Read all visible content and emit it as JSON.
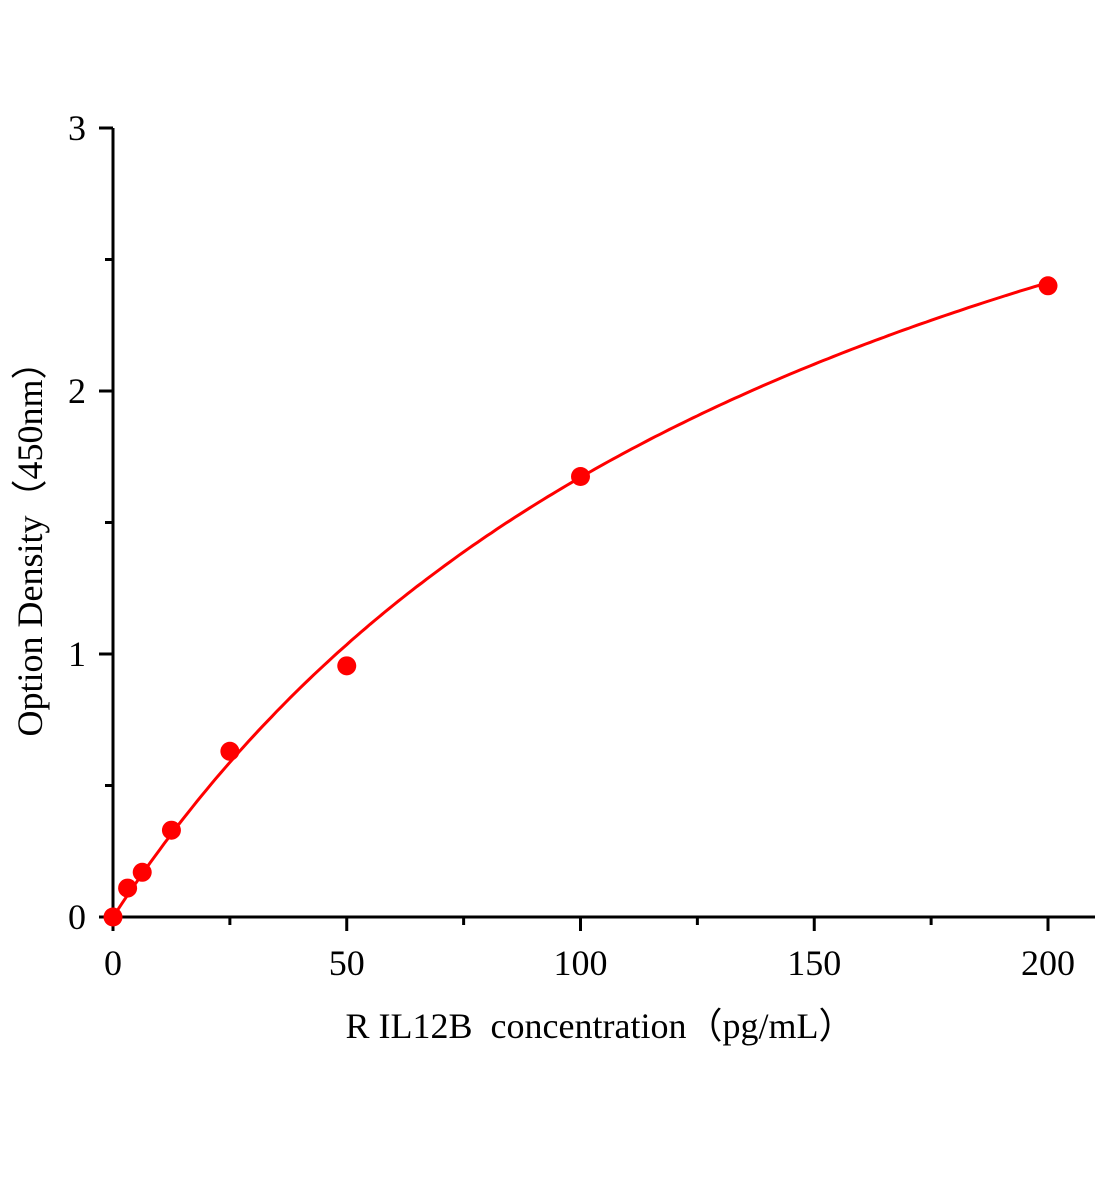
{
  "chart_data": {
    "type": "scatter",
    "title": "",
    "xlabel": "R IL12B  concentration（pg/mL）",
    "ylabel": "Option Density（450nm）",
    "xlim": [
      0,
      200
    ],
    "ylim": [
      0,
      3
    ],
    "x_ticks": [
      0,
      50,
      100,
      150,
      200
    ],
    "x_tick_labels": [
      "0",
      "50",
      "100",
      "150",
      "200"
    ],
    "y_ticks": [
      0,
      1,
      2,
      3
    ],
    "y_tick_labels": [
      "0",
      "1",
      "2",
      "3"
    ],
    "grid": false,
    "legend": "none",
    "series": [
      {
        "color": "#ff0000",
        "x": [
          0,
          3.125,
          6.25,
          12.5,
          25,
          50,
          100,
          200
        ],
        "y": [
          0.0,
          0.11,
          0.17,
          0.33,
          0.63,
          0.955,
          1.675,
          2.4
        ]
      }
    ],
    "fit_curve": {
      "color": "#ff0000",
      "type": "saturating fit"
    }
  }
}
